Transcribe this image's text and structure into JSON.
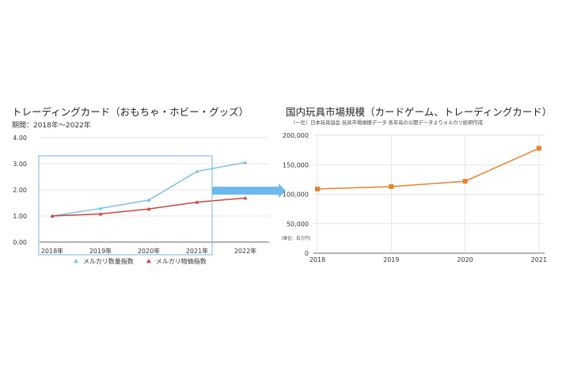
{
  "chart_data": [
    {
      "type": "line",
      "title": "トレーディングカード（おもちゃ・ホビー・グッズ）",
      "subtitle": "期間：2018年〜2022年",
      "categories": [
        "2018年",
        "2019年",
        "2020年",
        "2021年",
        "2022年"
      ],
      "ylim": [
        0,
        4
      ],
      "yticks": [
        "0.00",
        "1.00",
        "2.00",
        "3.00",
        "4.00"
      ],
      "grid": true,
      "legend_position": "bottom",
      "series": [
        {
          "name": "メルカリ数量指数",
          "color": "#7cc0e8",
          "marker": "triangle",
          "values": [
            1.0,
            1.29,
            1.61,
            2.71,
            3.05
          ]
        },
        {
          "name": "メルカリ物価指数",
          "color": "#c9463d",
          "marker": "triangle",
          "values": [
            1.0,
            1.08,
            1.27,
            1.53,
            1.69
          ]
        }
      ],
      "highlight_box_color": "#6fb8e0",
      "arrow_color": "#6db8ec"
    },
    {
      "type": "line",
      "title": "国内玩具市場規模（カードゲーム、トレーディングカード）",
      "subtitle": "（一社）日本玩具協会 玩具市場規模データ 各年毎の公開データよりメルカリ総研作成",
      "unit_label": "（単位：百万円）",
      "categories": [
        "2018",
        "2019",
        "2020",
        "2021"
      ],
      "ylim": [
        0,
        200000
      ],
      "yticks": [
        "0",
        "50,000",
        "100,000",
        "150,000",
        "200,000"
      ],
      "grid": true,
      "series": [
        {
          "color": "#e8822e",
          "marker": "square",
          "values": [
            108900,
            113000,
            122000,
            178000
          ]
        }
      ]
    }
  ]
}
